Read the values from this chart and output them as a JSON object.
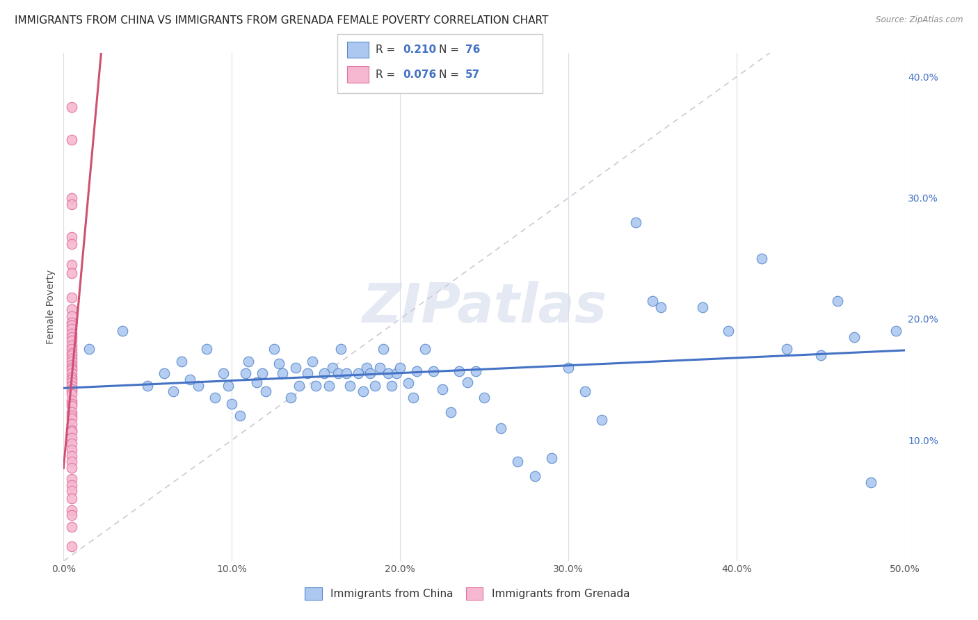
{
  "title": "IMMIGRANTS FROM CHINA VS IMMIGRANTS FROM GRENADA FEMALE POVERTY CORRELATION CHART",
  "source": "Source: ZipAtlas.com",
  "ylabel": "Female Poverty",
  "xlim": [
    0.0,
    0.5
  ],
  "ylim": [
    0.0,
    0.42
  ],
  "xticks": [
    0.0,
    0.1,
    0.2,
    0.3,
    0.4,
    0.5
  ],
  "yticks": [
    0.0,
    0.1,
    0.2,
    0.3,
    0.4
  ],
  "xtick_labels": [
    "0.0%",
    "10.0%",
    "20.0%",
    "30.0%",
    "40.0%",
    "50.0%"
  ],
  "ytick_labels_right": [
    "",
    "10.0%",
    "20.0%",
    "30.0%",
    "40.0%"
  ],
  "legend1_label": "Immigrants from China",
  "legend2_label": "Immigrants from Grenada",
  "r_china": "0.210",
  "n_china": "76",
  "r_grenada": "0.076",
  "n_grenada": "57",
  "china_color": "#adc8f0",
  "grenada_color": "#f5b8d0",
  "china_edge_color": "#5588cc",
  "grenada_edge_color": "#e070a0",
  "china_line_color": "#4472c4",
  "grenada_line_color": "#d05070",
  "diagonal_color": "#d0c8d8",
  "watermark": "ZIPatlas",
  "china_x": [
    0.015,
    0.035,
    0.05,
    0.06,
    0.065,
    0.07,
    0.075,
    0.08,
    0.085,
    0.09,
    0.095,
    0.098,
    0.1,
    0.105,
    0.108,
    0.11,
    0.115,
    0.118,
    0.12,
    0.125,
    0.128,
    0.13,
    0.135,
    0.138,
    0.14,
    0.145,
    0.148,
    0.15,
    0.155,
    0.158,
    0.16,
    0.163,
    0.165,
    0.168,
    0.17,
    0.175,
    0.178,
    0.18,
    0.182,
    0.185,
    0.188,
    0.19,
    0.193,
    0.195,
    0.198,
    0.2,
    0.205,
    0.208,
    0.21,
    0.215,
    0.22,
    0.225,
    0.23,
    0.235,
    0.24,
    0.245,
    0.25,
    0.26,
    0.27,
    0.28,
    0.29,
    0.3,
    0.31,
    0.32,
    0.34,
    0.355,
    0.38,
    0.395,
    0.415,
    0.43,
    0.45,
    0.46,
    0.47,
    0.48,
    0.495,
    0.35
  ],
  "china_y": [
    0.175,
    0.19,
    0.145,
    0.155,
    0.14,
    0.165,
    0.15,
    0.145,
    0.175,
    0.135,
    0.155,
    0.145,
    0.13,
    0.12,
    0.155,
    0.165,
    0.148,
    0.155,
    0.14,
    0.175,
    0.163,
    0.155,
    0.135,
    0.16,
    0.145,
    0.155,
    0.165,
    0.145,
    0.155,
    0.145,
    0.16,
    0.155,
    0.175,
    0.155,
    0.145,
    0.155,
    0.14,
    0.16,
    0.155,
    0.145,
    0.16,
    0.175,
    0.155,
    0.145,
    0.155,
    0.16,
    0.147,
    0.135,
    0.157,
    0.175,
    0.157,
    0.142,
    0.123,
    0.157,
    0.148,
    0.157,
    0.135,
    0.11,
    0.082,
    0.07,
    0.085,
    0.16,
    0.14,
    0.117,
    0.28,
    0.21,
    0.21,
    0.19,
    0.25,
    0.175,
    0.17,
    0.215,
    0.185,
    0.065,
    0.19,
    0.215
  ],
  "grenada_x": [
    0.005,
    0.005,
    0.005,
    0.005,
    0.005,
    0.005,
    0.005,
    0.005,
    0.005,
    0.005,
    0.005,
    0.005,
    0.005,
    0.005,
    0.005,
    0.005,
    0.005,
    0.005,
    0.005,
    0.005,
    0.005,
    0.005,
    0.005,
    0.005,
    0.005,
    0.005,
    0.005,
    0.005,
    0.005,
    0.005,
    0.005,
    0.005,
    0.005,
    0.005,
    0.005,
    0.005,
    0.005,
    0.005,
    0.005,
    0.005,
    0.005,
    0.005,
    0.005,
    0.005,
    0.005,
    0.005,
    0.005,
    0.005,
    0.005,
    0.005,
    0.005,
    0.005,
    0.005,
    0.005,
    0.005,
    0.005,
    0.005
  ],
  "grenada_y": [
    0.375,
    0.348,
    0.3,
    0.295,
    0.268,
    0.262,
    0.245,
    0.238,
    0.218,
    0.208,
    0.202,
    0.197,
    0.195,
    0.192,
    0.188,
    0.185,
    0.182,
    0.178,
    0.175,
    0.172,
    0.17,
    0.167,
    0.165,
    0.162,
    0.16,
    0.158,
    0.155,
    0.152,
    0.15,
    0.148,
    0.145,
    0.142,
    0.14,
    0.138,
    0.133,
    0.13,
    0.128,
    0.123,
    0.12,
    0.118,
    0.113,
    0.108,
    0.107,
    0.102,
    0.097,
    0.092,
    0.087,
    0.082,
    0.077,
    0.068,
    0.063,
    0.058,
    0.052,
    0.042,
    0.038,
    0.028,
    0.012
  ],
  "background_color": "#ffffff",
  "grid_color": "#dcdce8",
  "title_fontsize": 11,
  "axis_fontsize": 10,
  "tick_fontsize": 10
}
